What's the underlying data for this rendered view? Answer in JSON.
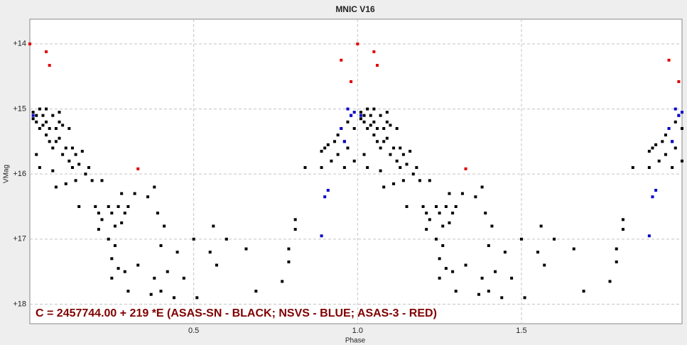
{
  "chart_data": {
    "type": "scatter",
    "title": "MNIC V16",
    "x_label": "Phase",
    "y_label": "VMag",
    "annotation": "C = 2457744.00 + 219 *E (ASAS-SN - BLACK; NSVS - BLUE; ASAS-3 - RED)",
    "xlim": [
      0.0,
      1.99
    ],
    "ylim": [
      18.3,
      13.62
    ],
    "xticks": [
      0.5,
      {
        "value": 1,
        "label": "1.0"
      },
      1.5
    ],
    "yticks": [
      {
        "value": 14,
        "label": "+14"
      },
      {
        "value": 15,
        "label": "+15"
      },
      {
        "value": 16,
        "label": "+16"
      },
      {
        "value": 17,
        "label": "+17"
      },
      {
        "value": 18,
        "label": "+18"
      }
    ],
    "grid": true,
    "series": [
      {
        "color": "#000000",
        "x": [
          0.01,
          0.01,
          0.02,
          0.02,
          0.03,
          0.03,
          0.02,
          0.03,
          0.04,
          0.04,
          0.05,
          0.05,
          0.05,
          0.06,
          0.06,
          0.07,
          0.07,
          0.07,
          0.08,
          0.08,
          0.08,
          0.09,
          0.09,
          0.09,
          0.1,
          0.1,
          0.11,
          0.11,
          0.12,
          0.12,
          0.13,
          0.13,
          0.14,
          0.14,
          0.15,
          0.15,
          0.16,
          0.17,
          0.18,
          0.19,
          0.2,
          0.21,
          0.21,
          0.22,
          0.22,
          0.24,
          0.24,
          0.25,
          0.25,
          0.25,
          0.26,
          0.26,
          0.27,
          0.27,
          0.28,
          0.28,
          0.29,
          0.29,
          0.3,
          0.3,
          0.32,
          0.33,
          0.36,
          0.37,
          0.38,
          0.38,
          0.39,
          0.4,
          0.4,
          0.41,
          0.42,
          0.44,
          0.45,
          0.47,
          0.5,
          0.51,
          0.55,
          0.56,
          0.57,
          0.6,
          0.66,
          0.69,
          0.77,
          0.79,
          0.79,
          0.81,
          0.81,
          0.84,
          0.89,
          0.89,
          0.9,
          0.91,
          0.92,
          0.93,
          0.94,
          0.94,
          0.95,
          0.96,
          0.96,
          0.97,
          0.97,
          0.98,
          0.99,
          0.99,
          1.01,
          1.01,
          1.02,
          1.02,
          1.03,
          1.03,
          1.02,
          1.03,
          1.04,
          1.04,
          1.05,
          1.05,
          1.05,
          1.06,
          1.06,
          1.07,
          1.07,
          1.07,
          1.08,
          1.08,
          1.08,
          1.09,
          1.09,
          1.09,
          1.1,
          1.1,
          1.11,
          1.11,
          1.12,
          1.12,
          1.13,
          1.13,
          1.14,
          1.14,
          1.15,
          1.15,
          1.16,
          1.17,
          1.18,
          1.19,
          1.2,
          1.21,
          1.21,
          1.22,
          1.22,
          1.24,
          1.24,
          1.25,
          1.25,
          1.25,
          1.26,
          1.26,
          1.27,
          1.27,
          1.28,
          1.28,
          1.29,
          1.29,
          1.3,
          1.3,
          1.32,
          1.33,
          1.36,
          1.37,
          1.38,
          1.38,
          1.39,
          1.4,
          1.4,
          1.41,
          1.42,
          1.44,
          1.45,
          1.47,
          1.5,
          1.51,
          1.55,
          1.56,
          1.57,
          1.6,
          1.66,
          1.69,
          1.77,
          1.79,
          1.79,
          1.81,
          1.81,
          1.84,
          1.89,
          1.89,
          1.9,
          1.91,
          1.92,
          1.93,
          1.94,
          1.94,
          1.95,
          1.96,
          1.96,
          1.97,
          1.97,
          1.98,
          1.99,
          1.99
        ],
        "y": [
          15.05,
          15.15,
          15.1,
          15.2,
          15.0,
          15.3,
          15.7,
          15.9,
          15.1,
          15.25,
          15.0,
          15.2,
          15.4,
          15.3,
          15.5,
          15.1,
          15.6,
          15.95,
          15.5,
          15.3,
          16.2,
          15.05,
          15.2,
          15.45,
          15.25,
          15.7,
          15.6,
          16.15,
          15.3,
          15.8,
          15.6,
          15.9,
          15.7,
          16.1,
          15.85,
          16.5,
          15.65,
          16.0,
          15.9,
          16.1,
          16.5,
          16.6,
          16.85,
          16.1,
          16.7,
          16.5,
          17.0,
          16.6,
          17.3,
          17.6,
          16.8,
          17.1,
          16.5,
          17.45,
          16.3,
          16.75,
          16.6,
          17.5,
          16.5,
          17.8,
          16.3,
          17.4,
          16.35,
          17.85,
          16.2,
          17.6,
          16.6,
          17.1,
          17.8,
          16.8,
          17.5,
          17.9,
          17.2,
          17.6,
          17.0,
          17.9,
          17.2,
          16.8,
          17.4,
          17.0,
          17.15,
          17.8,
          17.65,
          17.15,
          17.35,
          16.7,
          16.85,
          15.9,
          15.65,
          15.9,
          15.6,
          15.55,
          15.8,
          15.5,
          15.4,
          15.7,
          15.3,
          15.5,
          15.9,
          15.2,
          15.6,
          15.1,
          15.3,
          15.8,
          15.05,
          15.15,
          15.1,
          15.2,
          15.0,
          15.3,
          15.7,
          15.9,
          15.1,
          15.25,
          15.0,
          15.2,
          15.4,
          15.3,
          15.5,
          15.1,
          15.6,
          15.95,
          15.5,
          15.3,
          16.2,
          15.05,
          15.2,
          15.45,
          15.25,
          15.7,
          15.6,
          16.15,
          15.3,
          15.8,
          15.6,
          15.9,
          15.7,
          16.1,
          15.85,
          16.5,
          15.65,
          16.0,
          15.9,
          16.1,
          16.5,
          16.6,
          16.85,
          16.1,
          16.7,
          16.5,
          17.0,
          16.6,
          17.3,
          17.6,
          16.8,
          17.1,
          16.5,
          17.45,
          16.3,
          16.75,
          16.6,
          17.5,
          16.5,
          17.8,
          16.3,
          17.4,
          16.35,
          17.85,
          16.2,
          17.6,
          16.6,
          17.1,
          17.8,
          16.8,
          17.5,
          17.9,
          17.2,
          17.6,
          17.0,
          17.9,
          17.2,
          16.8,
          17.4,
          17.0,
          17.15,
          17.8,
          17.65,
          17.15,
          17.35,
          16.7,
          16.85,
          15.9,
          15.65,
          15.9,
          15.6,
          15.55,
          15.8,
          15.5,
          15.4,
          15.7,
          15.3,
          15.5,
          15.9,
          15.2,
          15.6,
          15.1,
          15.3,
          15.8
        ]
      },
      {
        "color": "#0000cc",
        "x": [
          0.01,
          0.89,
          0.9,
          0.91,
          0.95,
          0.96,
          0.97,
          0.98,
          0.99,
          1.01,
          1.89,
          1.9,
          1.91,
          1.95,
          1.96,
          1.97,
          1.98,
          1.99
        ],
        "y": [
          15.1,
          16.95,
          16.35,
          16.25,
          15.3,
          15.5,
          15.0,
          15.1,
          15.05,
          15.1,
          16.95,
          16.35,
          16.25,
          15.3,
          15.5,
          15.0,
          15.1,
          15.05
        ]
      },
      {
        "color": "#e00000",
        "x": [
          0.0,
          0.05,
          0.06,
          0.33,
          0.95,
          0.98,
          1.0,
          1.05,
          1.06,
          1.33,
          1.95,
          1.98
        ],
        "y": [
          14.0,
          14.12,
          14.33,
          15.92,
          14.25,
          14.58,
          14.0,
          14.12,
          14.33,
          15.92,
          14.25,
          14.58
        ]
      }
    ]
  }
}
